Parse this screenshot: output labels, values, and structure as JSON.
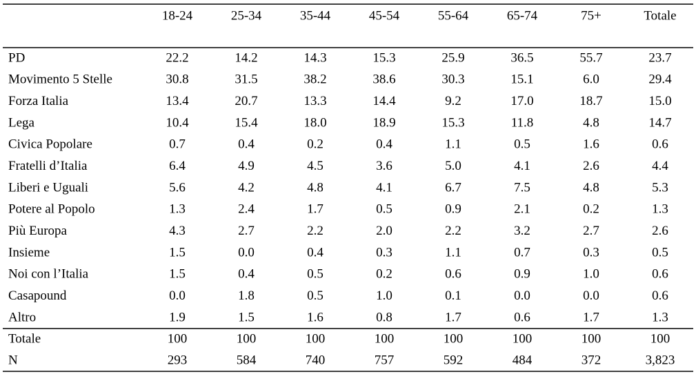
{
  "table": {
    "columns": [
      "18-24",
      "25-34",
      "35-44",
      "45-54",
      "55-64",
      "65-74",
      "75+",
      "Totale"
    ],
    "rows": [
      {
        "label": "PD",
        "values": [
          "22.2",
          "14.2",
          "14.3",
          "15.3",
          "25.9",
          "36.5",
          "55.7",
          "23.7"
        ]
      },
      {
        "label": "Movimento 5 Stelle",
        "values": [
          "30.8",
          "31.5",
          "38.2",
          "38.6",
          "30.3",
          "15.1",
          "6.0",
          "29.4"
        ]
      },
      {
        "label": "Forza Italia",
        "values": [
          "13.4",
          "20.7",
          "13.3",
          "14.4",
          "9.2",
          "17.0",
          "18.7",
          "15.0"
        ]
      },
      {
        "label": "Lega",
        "values": [
          "10.4",
          "15.4",
          "18.0",
          "18.9",
          "15.3",
          "11.8",
          "4.8",
          "14.7"
        ]
      },
      {
        "label": "Civica Popolare",
        "values": [
          "0.7",
          "0.4",
          "0.2",
          "0.4",
          "1.1",
          "0.5",
          "1.6",
          "0.6"
        ]
      },
      {
        "label": "Fratelli d’Italia",
        "values": [
          "6.4",
          "4.9",
          "4.5",
          "3.6",
          "5.0",
          "4.1",
          "2.6",
          "4.4"
        ]
      },
      {
        "label": "Liberi e Uguali",
        "values": [
          "5.6",
          "4.2",
          "4.8",
          "4.1",
          "6.7",
          "7.5",
          "4.8",
          "5.3"
        ]
      },
      {
        "label": "Potere al Popolo",
        "values": [
          "1.3",
          "2.4",
          "1.7",
          "0.5",
          "0.9",
          "2.1",
          "0.2",
          "1.3"
        ]
      },
      {
        "label": "Più Europa",
        "values": [
          "4.3",
          "2.7",
          "2.2",
          "2.0",
          "2.2",
          "3.2",
          "2.7",
          "2.6"
        ]
      },
      {
        "label": "Insieme",
        "values": [
          "1.5",
          "0.0",
          "0.4",
          "0.3",
          "1.1",
          "0.7",
          "0.3",
          "0.5"
        ]
      },
      {
        "label": "Noi con l’Italia",
        "values": [
          "1.5",
          "0.4",
          "0.5",
          "0.2",
          "0.6",
          "0.9",
          "1.0",
          "0.6"
        ]
      },
      {
        "label": "Casapound",
        "values": [
          "0.0",
          "1.8",
          "0.5",
          "1.0",
          "0.1",
          "0.0",
          "0.0",
          "0.6"
        ]
      },
      {
        "label": "Altro",
        "values": [
          "1.9",
          "1.5",
          "1.6",
          "0.8",
          "1.7",
          "0.6",
          "1.7",
          "1.3"
        ]
      }
    ],
    "footer": [
      {
        "label": "Totale",
        "values": [
          "100",
          "100",
          "100",
          "100",
          "100",
          "100",
          "100",
          "100"
        ]
      },
      {
        "label": "N",
        "values": [
          "293",
          "584",
          "740",
          "757",
          "592",
          "484",
          "372",
          "3,823"
        ]
      }
    ]
  }
}
